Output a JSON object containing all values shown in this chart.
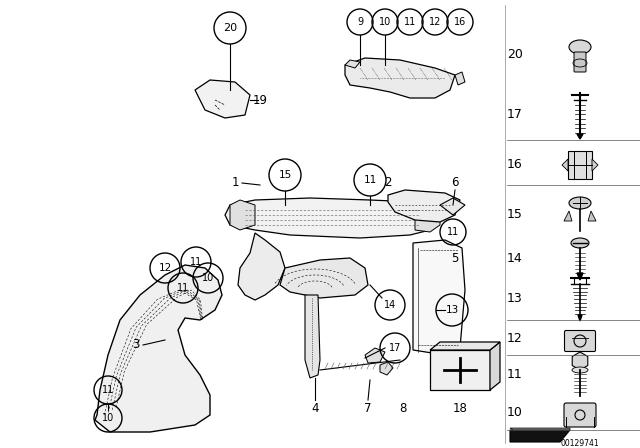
{
  "bg_color": "#ffffff",
  "fig_width": 6.4,
  "fig_height": 4.48,
  "dpi": 100,
  "part_number_image": "00129741",
  "text_color": "#000000",
  "circle_color": "#000000"
}
